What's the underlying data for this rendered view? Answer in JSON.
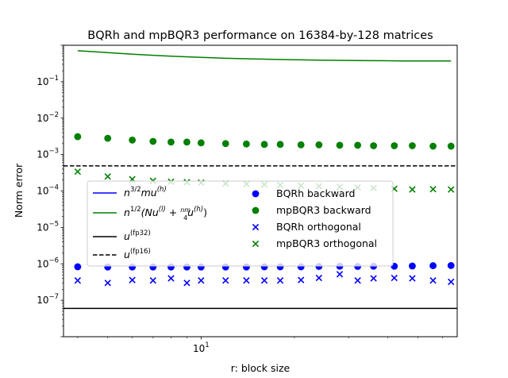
{
  "chart_data": {
    "type": "scatter",
    "title": "BQRh and mpBQR3 performance on 16384-by-128 matrices",
    "xlabel": "r: block size",
    "ylabel": "Norm error",
    "xscale": "log",
    "yscale": "log",
    "xlim": [
      3.6,
      67
    ],
    "ylim": [
      1e-08,
      1
    ],
    "x_tick_labels": [
      {
        "value": 10,
        "base": "10",
        "exp": "1"
      }
    ],
    "y_tick_labels": [
      {
        "value": 1e-07,
        "base": "10",
        "exp": "−7"
      },
      {
        "value": 1e-06,
        "base": "10",
        "exp": "−6"
      },
      {
        "value": 1e-05,
        "base": "10",
        "exp": "−5"
      },
      {
        "value": 0.0001,
        "base": "10",
        "exp": "−4"
      },
      {
        "value": 0.001,
        "base": "10",
        "exp": "−3"
      },
      {
        "value": 0.01,
        "base": "10",
        "exp": "−2"
      },
      {
        "value": 0.1,
        "base": "10",
        "exp": "−1"
      }
    ],
    "x": [
      4,
      5,
      6,
      7,
      8,
      9,
      10,
      12,
      14,
      16,
      18,
      21,
      24,
      28,
      32,
      36,
      42,
      48,
      56,
      64
    ],
    "series": [
      {
        "name": "BQRh backward",
        "kind": "dot",
        "color": "#0000ff",
        "values": [
          8.3e-07,
          8.2e-07,
          8.2e-07,
          8.2e-07,
          8.2e-07,
          8.2e-07,
          8.2e-07,
          8.2e-07,
          8.2e-07,
          8.3e-07,
          8.3e-07,
          8.3e-07,
          8.5e-07,
          8.6e-07,
          8.5e-07,
          8.6e-07,
          8.6e-07,
          8.7e-07,
          8.9e-07,
          9e-07
        ]
      },
      {
        "name": "mpBQR3 backward",
        "kind": "dot",
        "color": "#008000",
        "values": [
          0.0031,
          0.0028,
          0.0025,
          0.0023,
          0.0022,
          0.0022,
          0.0021,
          0.002,
          0.00195,
          0.0019,
          0.0019,
          0.00185,
          0.00185,
          0.0018,
          0.0018,
          0.00175,
          0.00175,
          0.00175,
          0.0017,
          0.0017
        ]
      },
      {
        "name": "BQRh orthogonal",
        "kind": "cross",
        "color": "#0000ff",
        "values": [
          3.5e-07,
          3e-07,
          3.6e-07,
          3.5e-07,
          4e-07,
          3e-07,
          3.5e-07,
          3.5e-07,
          3.5e-07,
          3.5e-07,
          3.5e-07,
          3.6e-07,
          4.1e-07,
          5.2e-07,
          3.5e-07,
          4e-07,
          4.1e-07,
          4e-07,
          3.5e-07,
          3.2e-07
        ]
      },
      {
        "name": "mpBQR3 orthogonal",
        "kind": "cross",
        "color": "#008000",
        "values": [
          0.00034,
          0.00025,
          0.00021,
          0.00019,
          0.00018,
          0.000175,
          0.00017,
          0.00016,
          0.000155,
          0.00015,
          0.000145,
          0.00014,
          0.000135,
          0.00013,
          0.000125,
          0.00012,
          0.000115,
          0.00011,
          0.000112,
          0.00011
        ]
      }
    ],
    "lines": [
      {
        "name": "n^{3/2} m u^{(h)}",
        "color": "#0000ff",
        "style": "solid",
        "x": [
          4,
          64
        ],
        "values": [
          null,
          null
        ]
      },
      {
        "name": "n^{1/2}(N u^{(l)} + nm/4 u^{(h)})",
        "color": "#008000",
        "style": "solid",
        "x": [
          4,
          5,
          6,
          7,
          8,
          10,
          12,
          16,
          20,
          24,
          32,
          40,
          48,
          56,
          64
        ],
        "values": [
          0.71,
          0.63,
          0.57,
          0.53,
          0.5,
          0.465,
          0.44,
          0.415,
          0.4,
          0.39,
          0.38,
          0.375,
          0.37,
          0.37,
          0.37
        ]
      },
      {
        "name": "u^{(fp32)}",
        "color": "#000000",
        "style": "solid",
        "y": 5.96e-08
      },
      {
        "name": "u^{(fp16)}",
        "color": "#000000",
        "style": "dashed",
        "y": 0.000488
      }
    ],
    "legend_left": [
      {
        "key": "blue-line",
        "color": "#0000ff",
        "style": "solid",
        "text": "n",
        "sup": "3/2",
        "tail": "mu",
        "sup2": "(h)"
      },
      {
        "key": "green-line",
        "color": "#008000",
        "style": "solid",
        "text": "n",
        "sup": "1/2",
        "tail": "(Nu",
        "sup2": "(l)",
        "mid": " + ",
        "frac_num": "nm",
        "frac_den": "4",
        "tail2": "u",
        "sup3": "(h)",
        "close": ")"
      },
      {
        "key": "black-line",
        "color": "#000000",
        "style": "solid",
        "text": "u",
        "sup": "(fp32)"
      },
      {
        "key": "black-dashed",
        "color": "#000000",
        "style": "dashed",
        "text": "u",
        "sup": "(fp16)"
      }
    ],
    "legend_right": [
      {
        "key": "blue-dot",
        "color": "#0000ff",
        "marker": "dot",
        "text": "BQRh backward"
      },
      {
        "key": "green-dot",
        "color": "#008000",
        "marker": "dot",
        "text": "mpBQR3 backward"
      },
      {
        "key": "blue-cross",
        "color": "#0000ff",
        "marker": "cross",
        "text": "BQRh orthogonal"
      },
      {
        "key": "green-cross",
        "color": "#008000",
        "marker": "cross",
        "text": "mpBQR3 orthogonal"
      }
    ]
  }
}
